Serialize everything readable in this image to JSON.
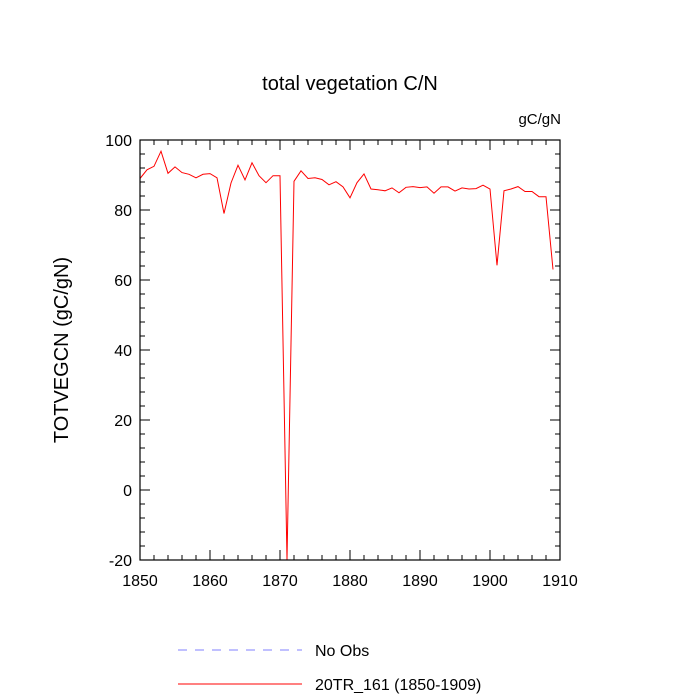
{
  "chart_data": {
    "type": "line",
    "title": "total vegetation C/N",
    "units_label": "gC/gN",
    "ylabel": "TOTVEGCN  (gC/gN)",
    "xlabel": "",
    "xlim": [
      1850,
      1910
    ],
    "ylim": [
      -20,
      100
    ],
    "x_ticks": [
      1850,
      1860,
      1870,
      1880,
      1890,
      1900,
      1910
    ],
    "y_ticks": [
      -20,
      0,
      20,
      40,
      60,
      80,
      100
    ],
    "legend_position": "bottom",
    "series": [
      {
        "name": "No Obs",
        "color": "#8080ff",
        "style": "dashed",
        "x": [],
        "y": []
      },
      {
        "name": "20TR_161 (1850-1909)",
        "color": "#ff0000",
        "style": "solid",
        "x": [
          1850,
          1851,
          1852,
          1853,
          1854,
          1855,
          1856,
          1857,
          1858,
          1859,
          1860,
          1861,
          1862,
          1863,
          1864,
          1865,
          1866,
          1867,
          1868,
          1869,
          1870,
          1871,
          1872,
          1873,
          1874,
          1875,
          1876,
          1877,
          1878,
          1879,
          1880,
          1881,
          1882,
          1883,
          1884,
          1885,
          1886,
          1887,
          1888,
          1889,
          1890,
          1891,
          1892,
          1893,
          1894,
          1895,
          1896,
          1897,
          1898,
          1899,
          1900,
          1901,
          1902,
          1903,
          1904,
          1905,
          1906,
          1907,
          1908,
          1909
        ],
        "y": [
          89,
          91.5,
          92.5,
          96.8,
          90.5,
          92.3,
          90.7,
          90.2,
          89.2,
          90.2,
          90.4,
          89.2,
          79,
          87.7,
          92.8,
          88.6,
          93.5,
          89.8,
          87.8,
          89.8,
          89.8,
          -20,
          88.2,
          91.2,
          89,
          89.2,
          88.7,
          87.2,
          88.1,
          86.6,
          83.5,
          87.8,
          90.3,
          86,
          85.8,
          85.5,
          86.3,
          84.9,
          86.5,
          86.7,
          86.4,
          86.6,
          84.8,
          86.6,
          86.6,
          85.4,
          86.3,
          86,
          86.1,
          87.1,
          86,
          64.2,
          85.5,
          86,
          86.7,
          85.3,
          85.3,
          83.8,
          83.8,
          63
        ]
      }
    ]
  }
}
